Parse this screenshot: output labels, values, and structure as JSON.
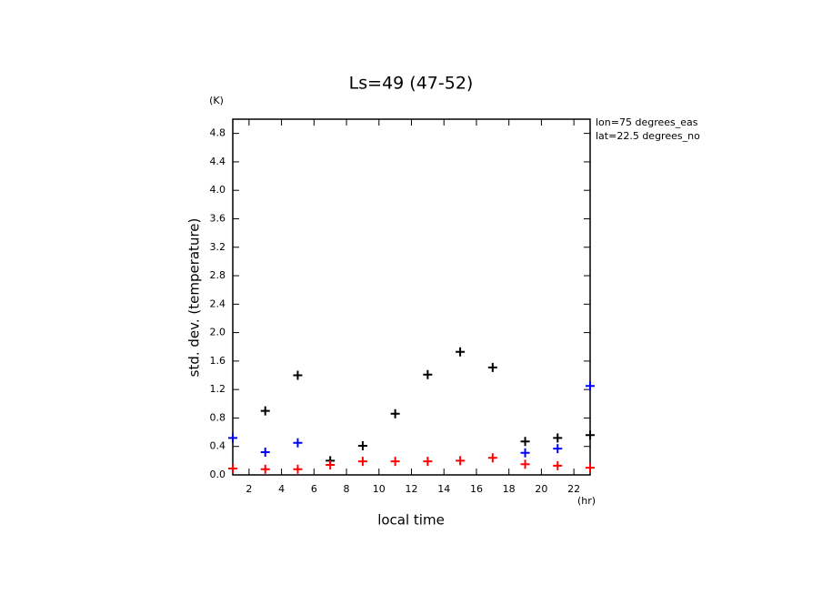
{
  "chart_data": {
    "type": "scatter",
    "title": "Ls=49 (47-52)",
    "x_label": "local time",
    "y_label": "std. dev. (temperature)",
    "x_unit": "(hr)",
    "y_unit": "(K)",
    "annotations": [
      "lon=75 degrees_eas",
      "lat=22.5 degrees_no"
    ],
    "x": [
      1,
      3,
      5,
      7,
      9,
      11,
      13,
      15,
      17,
      19,
      21,
      23
    ],
    "series": [
      {
        "color": "#000000",
        "values": [
          null,
          0.9,
          1.4,
          0.2,
          0.41,
          0.86,
          1.41,
          1.73,
          1.51,
          0.47,
          0.52,
          0.56
        ]
      },
      {
        "color": "#0000ff",
        "values": [
          0.52,
          0.32,
          0.45,
          null,
          null,
          null,
          null,
          null,
          null,
          0.31,
          0.37,
          1.25
        ]
      },
      {
        "color": "#ff0000",
        "values": [
          0.09,
          0.08,
          0.08,
          0.14,
          0.19,
          0.19,
          0.19,
          0.2,
          0.24,
          0.15,
          0.13,
          0.1
        ]
      }
    ],
    "xlim": [
      1,
      23
    ],
    "ylim": [
      0,
      5
    ],
    "xticks": [
      2,
      4,
      6,
      8,
      10,
      12,
      14,
      16,
      18,
      20,
      22
    ],
    "yticks": [
      {
        "value": 0,
        "label": "0.0"
      },
      {
        "value": 0.4,
        "label": "0.4"
      },
      {
        "value": 0.8,
        "label": "0.8"
      },
      {
        "value": 1.2,
        "label": "1.2"
      },
      {
        "value": 1.6,
        "label": "1.6"
      },
      {
        "value": 2.0,
        "label": "2.0"
      },
      {
        "value": 2.4,
        "label": "2.4"
      },
      {
        "value": 2.8,
        "label": "2.8"
      },
      {
        "value": 3.2,
        "label": "3.2"
      },
      {
        "value": 3.6,
        "label": "3.6"
      },
      {
        "value": 4.0,
        "label": "4.0"
      },
      {
        "value": 4.4,
        "label": "4.4"
      },
      {
        "value": 4.8,
        "label": "4.8"
      }
    ]
  }
}
